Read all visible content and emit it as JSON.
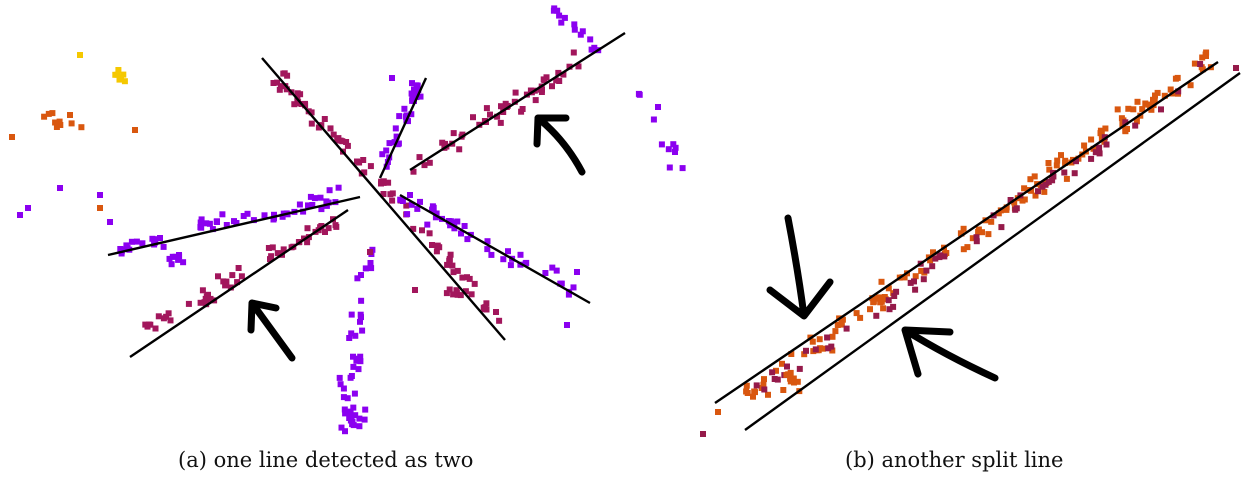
{
  "figure": {
    "panels": [
      {
        "id": "a",
        "caption": "(a) one line detected as two"
      },
      {
        "id": "b",
        "caption": "(b) another split line"
      }
    ]
  },
  "colors": {
    "purple": "#8b00f0",
    "crimson": "#a2165c",
    "maroon": "#951a4a",
    "orange": "#d9570f",
    "dark_orange": "#c84a18",
    "gold": "#f5c800",
    "line": "#000000"
  },
  "icons": [
    "arrow-annotation-icon"
  ]
}
